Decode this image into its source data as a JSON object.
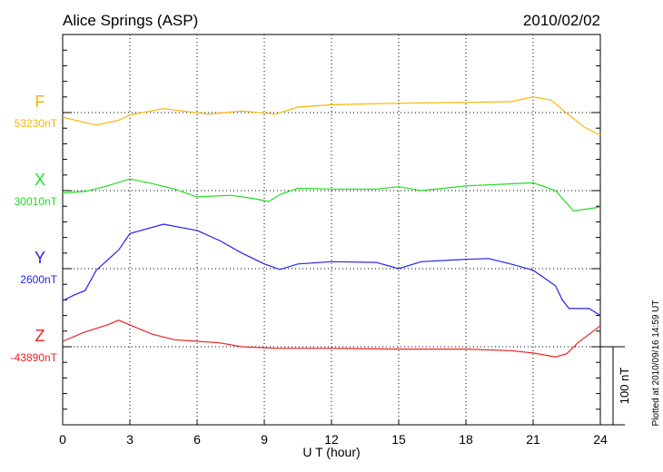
{
  "chart_data": {
    "type": "line",
    "title": "Alice Springs (ASP)",
    "date": "2010/02/02",
    "xlabel": "U T (hour)",
    "xlim": [
      0,
      24
    ],
    "xticks": [
      "0",
      "3",
      "6",
      "9",
      "12",
      "15",
      "18",
      "21",
      "24"
    ],
    "grid": "dotted at 3-hour intervals and component baselines",
    "scale_bar_label": "100 nT",
    "scale_bar_nT": 100,
    "minor_tick_nT": 20,
    "plotted_note": "Plotted at 2010/09/16 14:59 UT",
    "series": [
      {
        "name": "F",
        "baseline_label": "53230nT",
        "color": "#f7b500",
        "points": [
          [
            0,
            -6
          ],
          [
            1.5,
            -16
          ],
          [
            2.5,
            -10
          ],
          [
            3,
            -3
          ],
          [
            4.5,
            5
          ],
          [
            6.5,
            -2
          ],
          [
            8,
            2
          ],
          [
            9.5,
            -2
          ],
          [
            10.5,
            7
          ],
          [
            12,
            10
          ],
          [
            15,
            12
          ],
          [
            18,
            13
          ],
          [
            20,
            14
          ],
          [
            21,
            20
          ],
          [
            21.8,
            16
          ],
          [
            22.5,
            -1
          ],
          [
            23.3,
            -19
          ],
          [
            24,
            -29
          ]
        ]
      },
      {
        "name": "X",
        "baseline_label": "30010nT",
        "color": "#22dd22",
        "points": [
          [
            0,
            -3
          ],
          [
            1,
            -1
          ],
          [
            2,
            6
          ],
          [
            3,
            15
          ],
          [
            4,
            9
          ],
          [
            5,
            2
          ],
          [
            6,
            -8
          ],
          [
            7.5,
            -6
          ],
          [
            8.5,
            -10
          ],
          [
            9.2,
            -14
          ],
          [
            9.7,
            -5
          ],
          [
            10.5,
            3
          ],
          [
            12,
            2
          ],
          [
            14,
            2
          ],
          [
            15,
            5
          ],
          [
            16,
            0
          ],
          [
            18,
            6
          ],
          [
            19.5,
            8
          ],
          [
            21,
            10
          ],
          [
            22,
            0
          ],
          [
            22.8,
            -26
          ],
          [
            24,
            -21
          ]
        ]
      },
      {
        "name": "Y",
        "baseline_label": "2600nT",
        "color": "#2222ee",
        "points": [
          [
            0,
            -41
          ],
          [
            0.5,
            -34
          ],
          [
            1,
            -28
          ],
          [
            1.5,
            -2
          ],
          [
            2.5,
            24
          ],
          [
            3,
            45
          ],
          [
            4.5,
            57
          ],
          [
            6,
            49
          ],
          [
            7,
            36
          ],
          [
            8,
            20
          ],
          [
            9,
            6
          ],
          [
            9.7,
            -1
          ],
          [
            10.5,
            6
          ],
          [
            12,
            9
          ],
          [
            14,
            8
          ],
          [
            15,
            0
          ],
          [
            16,
            9
          ],
          [
            18,
            12
          ],
          [
            19,
            13
          ],
          [
            20,
            6
          ],
          [
            21,
            -2
          ],
          [
            22,
            -22
          ],
          [
            22.3,
            -40
          ],
          [
            22.6,
            -51
          ],
          [
            23.5,
            -51
          ],
          [
            24,
            -60
          ]
        ]
      },
      {
        "name": "Z",
        "baseline_label": "-43890nT",
        "color": "#ee2222",
        "points": [
          [
            0,
            7
          ],
          [
            1,
            19
          ],
          [
            2,
            28
          ],
          [
            2.5,
            34
          ],
          [
            3,
            28
          ],
          [
            4,
            16
          ],
          [
            5,
            9
          ],
          [
            6,
            7
          ],
          [
            7,
            5
          ],
          [
            8,
            0
          ],
          [
            9.5,
            -2
          ],
          [
            12,
            -2
          ],
          [
            15,
            -3
          ],
          [
            18,
            -3
          ],
          [
            20,
            -5
          ],
          [
            21,
            -8
          ],
          [
            22,
            -13
          ],
          [
            22.5,
            -9
          ],
          [
            23,
            5
          ],
          [
            24,
            27
          ]
        ]
      }
    ]
  }
}
